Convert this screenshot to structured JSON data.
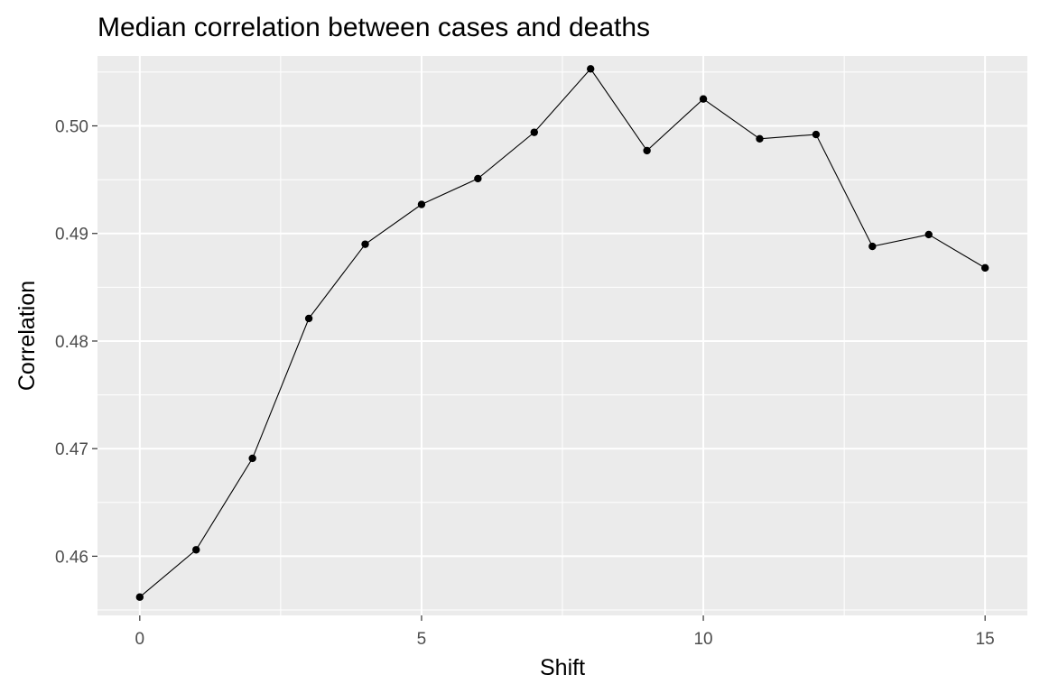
{
  "chart_data": {
    "type": "line",
    "title": "Median correlation between cases and deaths",
    "xlabel": "Shift",
    "ylabel": "Correlation",
    "x": [
      0,
      1,
      2,
      3,
      4,
      5,
      6,
      7,
      8,
      9,
      10,
      11,
      12,
      13,
      14,
      15
    ],
    "y": [
      0.4562,
      0.4606,
      0.4691,
      0.4821,
      0.489,
      0.4927,
      0.4951,
      0.4994,
      0.5053,
      0.4977,
      0.5025,
      0.4988,
      0.4992,
      0.4888,
      0.4899,
      0.4868
    ],
    "xlim": [
      -0.75,
      15.75
    ],
    "ylim": [
      0.4545,
      0.5065
    ],
    "xticks": [
      0,
      5,
      10,
      15
    ],
    "xtick_labels": [
      "0",
      "5",
      "10",
      "15"
    ],
    "yticks": [
      0.46,
      0.47,
      0.48,
      0.49,
      0.5
    ],
    "ytick_labels": [
      "0.46",
      "0.47",
      "0.48",
      "0.49",
      "0.50"
    ],
    "grid": true,
    "legend": "none",
    "colors": {
      "panel_background": "#ebebeb",
      "grid_line": "#ffffff",
      "series": "#000000",
      "tick_text": "#4d4d4d"
    }
  }
}
